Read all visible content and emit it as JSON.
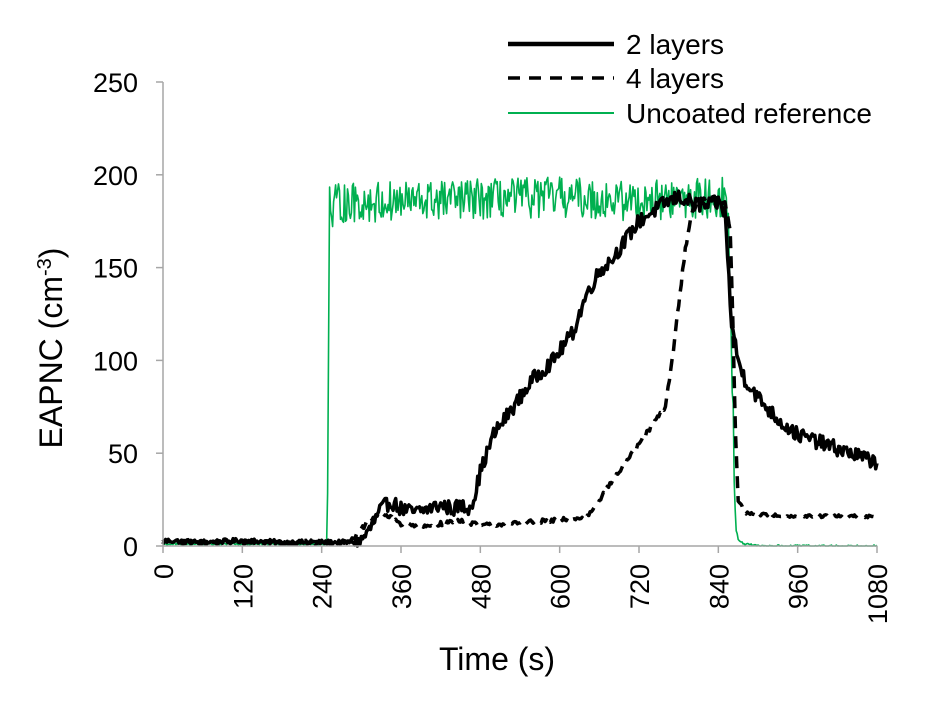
{
  "chart_data": {
    "type": "line",
    "title": "",
    "xlabel": "Time (s)",
    "ylabel": "EAPNC (cm",
    "ylabel_sup": "-3",
    "ylabel_close": ")",
    "xlim": [
      0,
      1080
    ],
    "ylim": [
      0,
      250
    ],
    "x_ticks": [
      0,
      120,
      240,
      360,
      480,
      600,
      720,
      840,
      960,
      1080
    ],
    "x_tick_labels": [
      "0",
      "120",
      "240",
      "360",
      "480",
      "600",
      "720",
      "840",
      "960",
      "1080"
    ],
    "y_ticks": [
      0,
      50,
      100,
      150,
      200,
      250
    ],
    "y_tick_labels": [
      "0",
      "50",
      "100",
      "150",
      "200",
      "250"
    ],
    "grid": false,
    "legend_position": "top-right",
    "series": [
      {
        "name": "2 layers",
        "color": "#000000",
        "style": "solid",
        "noise": 4,
        "x": [
          0,
          60,
          120,
          180,
          240,
          280,
          300,
          315,
          330,
          345,
          360,
          380,
          400,
          420,
          440,
          450,
          460,
          470,
          480,
          500,
          530,
          560,
          590,
          620,
          640,
          660,
          680,
          700,
          720,
          740,
          760,
          780,
          800,
          820,
          840,
          850,
          855,
          860,
          865,
          870,
          880,
          900,
          920,
          940,
          960,
          1000,
          1040,
          1080
        ],
        "y": [
          3,
          2,
          3,
          2,
          2,
          2,
          3,
          10,
          20,
          24,
          20,
          18,
          20,
          22,
          20,
          22,
          20,
          25,
          40,
          60,
          75,
          90,
          100,
          115,
          135,
          148,
          155,
          165,
          175,
          180,
          185,
          188,
          185,
          183,
          185,
          180,
          150,
          120,
          110,
          100,
          90,
          80,
          72,
          65,
          60,
          55,
          50,
          45
        ]
      },
      {
        "name": "4 layers",
        "color": "#000000",
        "style": "dashed",
        "noise": 1.2,
        "x": [
          0,
          120,
          240,
          270,
          290,
          310,
          330,
          360,
          390,
          420,
          450,
          480,
          520,
          560,
          600,
          640,
          660,
          680,
          700,
          720,
          740,
          760,
          770,
          780,
          790,
          800,
          810,
          820,
          840,
          850,
          858,
          862,
          866,
          870,
          880,
          900,
          960,
          1080
        ],
        "y": [
          2,
          2,
          2,
          2,
          5,
          13,
          18,
          12,
          10,
          12,
          14,
          11,
          12,
          13,
          14,
          15,
          25,
          35,
          45,
          55,
          65,
          75,
          100,
          130,
          160,
          180,
          185,
          188,
          187,
          185,
          170,
          120,
          60,
          25,
          18,
          17,
          16,
          16
        ]
      },
      {
        "name": "Uncoated reference",
        "color": "#00b050",
        "style": "solid",
        "noise": 11,
        "x": [
          0,
          120,
          240,
          248,
          250,
          252,
          255,
          262,
          300,
          400,
          500,
          600,
          700,
          800,
          850,
          855,
          860,
          864,
          867,
          870,
          880,
          900,
          960,
          1080
        ],
        "y": [
          1,
          1,
          1,
          1,
          75,
          190,
          175,
          185,
          185,
          186,
          187,
          188,
          186,
          187,
          188,
          175,
          110,
          40,
          10,
          3,
          1,
          0,
          0,
          0
        ]
      }
    ]
  }
}
